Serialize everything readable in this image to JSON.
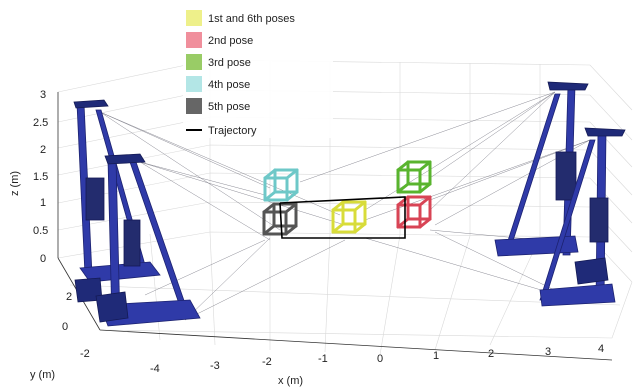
{
  "legend": [
    {
      "label": "1st and 6th poses",
      "color": "#eef08a"
    },
    {
      "label": "2nd pose",
      "color": "#f08f9c"
    },
    {
      "label": "3rd pose",
      "color": "#99cc66"
    },
    {
      "label": "4th pose",
      "color": "#b3e6e6"
    },
    {
      "label": "5th pose",
      "color": "#666666"
    },
    {
      "label": "Trajectory",
      "color": "#000000"
    }
  ],
  "axes": {
    "xlabel": "x (m)",
    "ylabel": "y (m)",
    "zlabel": "z (m)",
    "x_ticks": [
      "-4",
      "-3",
      "-2",
      "-1",
      "0",
      "1",
      "2",
      "3",
      "4"
    ],
    "y_ticks": [
      "2",
      "0",
      "-2"
    ],
    "z_ticks": [
      "3",
      "2.5",
      "2",
      "1.5",
      "1",
      "0.5",
      "0"
    ]
  },
  "colors": {
    "pose1": "#d8dc3a",
    "pose2": "#d84455",
    "pose3": "#59b42e",
    "pose4": "#6ec8c8",
    "pose5": "#555555",
    "robot": "#2f3aa8",
    "trajectory": "#000000"
  }
}
